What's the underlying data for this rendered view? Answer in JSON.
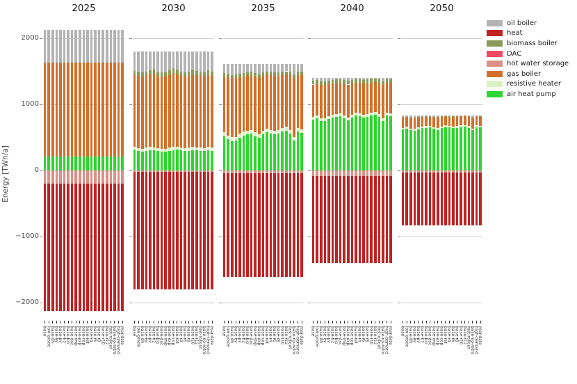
{
  "figure": {
    "ylabel": "Energy [TWh/a]",
    "yticks": [
      {
        "value": 2000,
        "label": "2000"
      },
      {
        "value": 1000,
        "label": "1000"
      },
      {
        "value": 0,
        "label": "0"
      },
      {
        "value": -1000,
        "label": "−1000"
      },
      {
        "value": -2000,
        "label": "−2000"
      }
    ]
  },
  "legend": {
    "entries": [
      {
        "name": "oil-boiler",
        "label": "oil boiler",
        "color": "#b3b3b3"
      },
      {
        "name": "heat",
        "label": "heat",
        "color": "#bf2222"
      },
      {
        "name": "biomass-boiler",
        "label": "biomass boiler",
        "color": "#8a9a58"
      },
      {
        "name": "dac",
        "label": "DAC",
        "color": "#f24a62"
      },
      {
        "name": "hot-water-storage",
        "label": "hot water storage",
        "color": "#dd9086"
      },
      {
        "name": "gas-boiler",
        "label": "gas boiler",
        "color": "#d2702a"
      },
      {
        "name": "resistive-heater",
        "label": "resistive heater",
        "color": "#d9f2c1"
      },
      {
        "name": "air-heat-pump",
        "label": "air heat pump",
        "color": "#2fd52f"
      }
    ]
  },
  "chart_data": {
    "type": "bar",
    "stacked": true,
    "title": "",
    "xlabel": "",
    "ylabel": "Energy [TWh/a]",
    "unit": "TWh/a",
    "ylim": [
      -2300,
      2400
    ],
    "grid": true,
    "legend_position": "upper right outside",
    "facet_titles": [
      "2025",
      "2030",
      "2035",
      "2040",
      "2050"
    ],
    "scenarios": [
      "base",
      "low-grade",
      "base-dh",
      "base-ev",
      "base-pv",
      "base-h2",
      "base-bio",
      "base-dac",
      "base-imp",
      "base-exp",
      "base-cop",
      "base-ret",
      "base-r4",
      "base-r6",
      "base-r8",
      "base-r10",
      "base-r12",
      "fast-rollout",
      "base-no-retro",
      "high-demand",
      "mandate"
    ],
    "stack_order_positive": [
      "air_heat_pump",
      "resistive_heater",
      "gas_boiler",
      "biomass_boiler",
      "oil_boiler"
    ],
    "stack_order_negative": [
      "hot_water_storage",
      "heat"
    ],
    "colors": {
      "oil_boiler": "#b3b3b3",
      "heat": "#bf2222",
      "biomass_boiler": "#8a9a58",
      "dac": "#f24a62",
      "hot_water_storage": "#dd9086",
      "gas_boiler": "#d2702a",
      "resistive_heater": "#d9f2c1",
      "air_heat_pump": "#2fd52f"
    },
    "facets": [
      {
        "year": "2025",
        "series": {
          "air_heat_pump": 210,
          "resistive_heater": 0,
          "gas_boiler": 1420,
          "biomass_boiler": 0,
          "oil_boiler": 500,
          "dac": 0,
          "hot_water_storage": 200,
          "heat": 1930
        }
      },
      {
        "year": "2030",
        "series": {
          "air_heat_pump": [
            315,
            290,
            285,
            300,
            310,
            305,
            295,
            280,
            285,
            300,
            310,
            315,
            305,
            295,
            300,
            310,
            305,
            300,
            295,
            310,
            300
          ],
          "resistive_heater": 45,
          "gas_boiler": [
            1085,
            1095,
            1090,
            1090,
            1095,
            1110,
            1085,
            1090,
            1090,
            1100,
            1115,
            1095,
            1085,
            1080,
            1085,
            1090,
            1090,
            1085,
            1080,
            1090,
            1090
          ],
          "biomass_boiler": [
            65,
            70,
            60,
            65,
            70,
            75,
            60,
            65,
            60,
            70,
            80,
            70,
            65,
            60,
            65,
            70,
            65,
            65,
            60,
            70,
            65
          ],
          "oil_boiler": [
            290,
            300,
            320,
            300,
            280,
            265,
            315,
            320,
            320,
            285,
            250,
            275,
            300,
            320,
            305,
            285,
            295,
            305,
            320,
            285,
            300
          ],
          "dac": 0,
          "hot_water_storage": 25,
          "heat": 1775
        }
      },
      {
        "year": "2035",
        "series": {
          "air_heat_pump": [
            520,
            470,
            445,
            455,
            500,
            530,
            545,
            560,
            520,
            490,
            545,
            575,
            560,
            545,
            555,
            585,
            605,
            560,
            455,
            585,
            570
          ],
          "resistive_heater": 55,
          "gas_boiler": [
            845,
            875,
            895,
            890,
            860,
            840,
            830,
            825,
            845,
            860,
            830,
            815,
            825,
            830,
            825,
            805,
            790,
            825,
            890,
            805,
            815
          ],
          "biomass_boiler": 50,
          "oil_boiler": [
            140,
            160,
            165,
            160,
            145,
            135,
            130,
            120,
            140,
            155,
            130,
            115,
            120,
            130,
            125,
            115,
            110,
            120,
            160,
            115,
            120
          ],
          "dac": 0,
          "hot_water_storage": 40,
          "heat": 1570
        }
      },
      {
        "year": "2040",
        "series": {
          "air_heat_pump": [
            770,
            790,
            750,
            745,
            780,
            800,
            810,
            820,
            790,
            760,
            800,
            830,
            820,
            800,
            810,
            830,
            840,
            810,
            750,
            830,
            820
          ],
          "resistive_heater": 40,
          "gas_boiler": [
            490,
            480,
            505,
            505,
            485,
            475,
            470,
            465,
            480,
            500,
            475,
            460,
            465,
            475,
            470,
            460,
            455,
            470,
            505,
            460,
            465
          ],
          "biomass_boiler": 55,
          "oil_boiler": [
            45,
            35,
            50,
            55,
            40,
            30,
            25,
            20,
            35,
            45,
            30,
            15,
            20,
            30,
            25,
            15,
            10,
            25,
            50,
            15,
            20
          ],
          "dac": 0,
          "hot_water_storage": 80,
          "heat": 1320
        }
      },
      {
        "year": "2050",
        "series": {
          "air_heat_pump": [
            620,
            635,
            610,
            605,
            625,
            640,
            645,
            650,
            630,
            615,
            640,
            655,
            650,
            640,
            645,
            655,
            660,
            645,
            610,
            655,
            650
          ],
          "resistive_heater": 25,
          "gas_boiler": [
            155,
            145,
            160,
            160,
            150,
            145,
            142,
            140,
            150,
            158,
            145,
            138,
            140,
            145,
            142,
            138,
            135,
            142,
            160,
            138,
            140
          ],
          "biomass_boiler": 10,
          "oil_boiler": [
            20,
            15,
            25,
            30,
            20,
            10,
            8,
            5,
            15,
            22,
            10,
            2,
            5,
            10,
            8,
            2,
            0,
            8,
            25,
            2,
            5
          ],
          "dac": 0,
          "hot_water_storage": 30,
          "heat": 800
        }
      }
    ]
  }
}
